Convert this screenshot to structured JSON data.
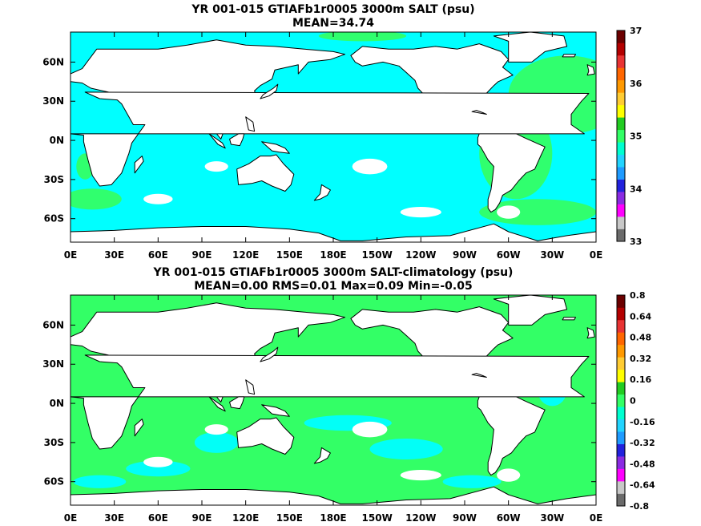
{
  "colors": {
    "cyan": "#00ffff",
    "green": "#33ff66",
    "land": "#ffffff",
    "coast": "#000000",
    "colorbar": [
      "#6b6b6b",
      "#c8c8c8",
      "#ff00ff",
      "#8a2be2",
      "#2222dd",
      "#1f9bff",
      "#22d4ff",
      "#00ffd0",
      "#33ff66",
      "#22cc22",
      "#ffff00",
      "#ffcc33",
      "#ff9900",
      "#ff6600",
      "#e83333",
      "#b30000",
      "#6b0000"
    ]
  },
  "panels": [
    {
      "title_line1": "YR 001-015 GTIAFb1r0005 3000m SALT (psu)",
      "title_line2": "MEAN=34.74",
      "fill_name": "cyan",
      "patch_name": "green",
      "colorbar_labels": [
        "37",
        "36",
        "35",
        "34",
        "33"
      ]
    },
    {
      "title_line1": "YR 001-015 GTIAFb1r0005 3000m SALT-climatology (psu)",
      "title_line2": "MEAN=0.00   RMS=0.01   Max=0.09   Min=-0.05",
      "fill_name": "green",
      "patch_name": "cyan",
      "colorbar_labels": [
        "0.8",
        "0.64",
        "0.48",
        "0.32",
        "0.16",
        "0",
        "-0.16",
        "-0.32",
        "-0.48",
        "-0.64",
        "-0.8"
      ]
    }
  ],
  "axes": {
    "lat_labels": [
      "60N",
      "30N",
      "0N",
      "30S",
      "60S"
    ],
    "lon_labels": [
      "0E",
      "30E",
      "60E",
      "90E",
      "120E",
      "150E",
      "180E",
      "150W",
      "120W",
      "90W",
      "60W",
      "30W",
      "0E"
    ]
  }
}
